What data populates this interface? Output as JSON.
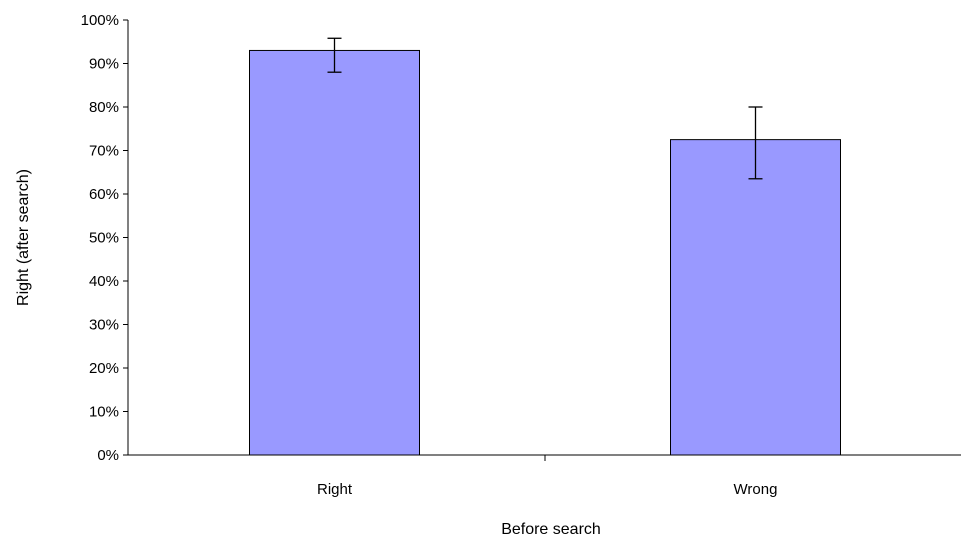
{
  "chart_data": {
    "type": "bar",
    "title": "",
    "xlabel": "Before search",
    "ylabel": "Right (after search)",
    "categories": [
      "Right",
      "Wrong"
    ],
    "series": [
      {
        "values": [
          93,
          72.5
        ],
        "error_upper": [
          95.8,
          80
        ],
        "error_lower": [
          88,
          63.5
        ]
      }
    ],
    "ylim": [
      0,
      100
    ],
    "ytick_step": 10,
    "ytick_suffix": "%",
    "grid": false,
    "legend": "none",
    "bar_color": "#9999ff",
    "bar_edge_color": "#000000"
  }
}
